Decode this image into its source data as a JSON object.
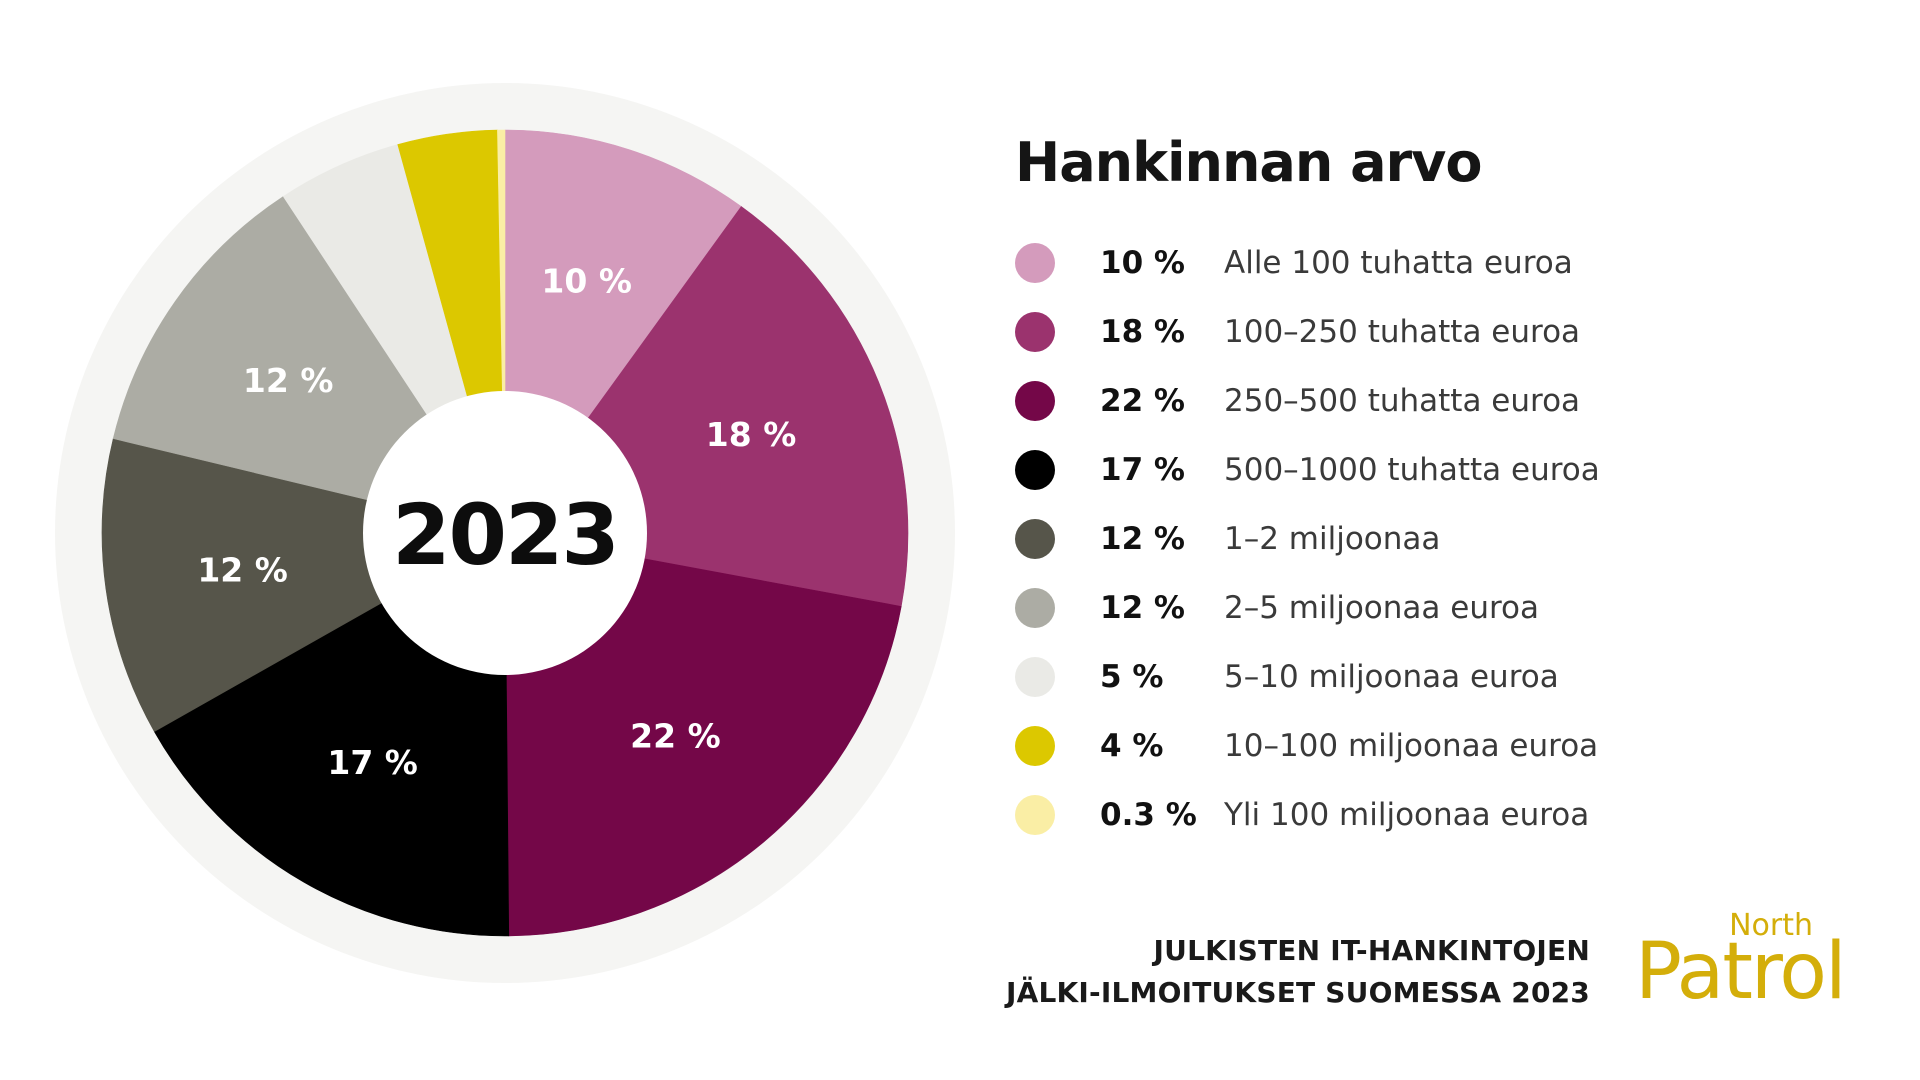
{
  "legend_title": "Hankinnan arvo",
  "chart_data": {
    "type": "pie",
    "title": "Hankinnan arvo",
    "center_label": "2023",
    "slices": [
      {
        "value": 10,
        "pct_label": "10 %",
        "label": "Alle 100 tuhatta euroa",
        "color": "#d49bbc",
        "show_on_chart": true
      },
      {
        "value": 18,
        "pct_label": "18 %",
        "label": "100–250 tuhatta euroa",
        "color": "#9b336e",
        "show_on_chart": true
      },
      {
        "value": 22,
        "pct_label": "22 %",
        "label": "250–500 tuhatta euroa",
        "color": "#740748",
        "show_on_chart": true
      },
      {
        "value": 17,
        "pct_label": "17 %",
        "label": "500–1000 tuhatta euroa",
        "color": "#000000",
        "show_on_chart": true
      },
      {
        "value": 12,
        "pct_label": "12 %",
        "label": "1–2 miljoonaa",
        "color": "#56554a",
        "show_on_chart": true
      },
      {
        "value": 12,
        "pct_label": "12 %",
        "label": "2–5 miljoonaa euroa",
        "color": "#acaca4",
        "show_on_chart": true
      },
      {
        "value": 5,
        "pct_label": "5 %",
        "label": "5–10 miljoonaa euroa",
        "color": "#eaeae6",
        "show_on_chart": false
      },
      {
        "value": 4,
        "pct_label": "4 %",
        "label": "10–100 miljoonaa euroa",
        "color": "#dcc800",
        "show_on_chart": false
      },
      {
        "value": 0.3,
        "pct_label": "0.3 %",
        "label": "Yli 100 miljoonaa euroa",
        "color": "#faeea5",
        "show_on_chart": false
      }
    ],
    "outer_ring_color": "#f5f5f3"
  },
  "footer": {
    "line1": "JULKISTEN IT-HANKINTOJEN",
    "line2": "JÄLKI-ILMOITUKSET SUOMESSA 2023"
  },
  "logo": {
    "north": "North",
    "patrol": "Patrol",
    "color": "#d4ae0a"
  }
}
